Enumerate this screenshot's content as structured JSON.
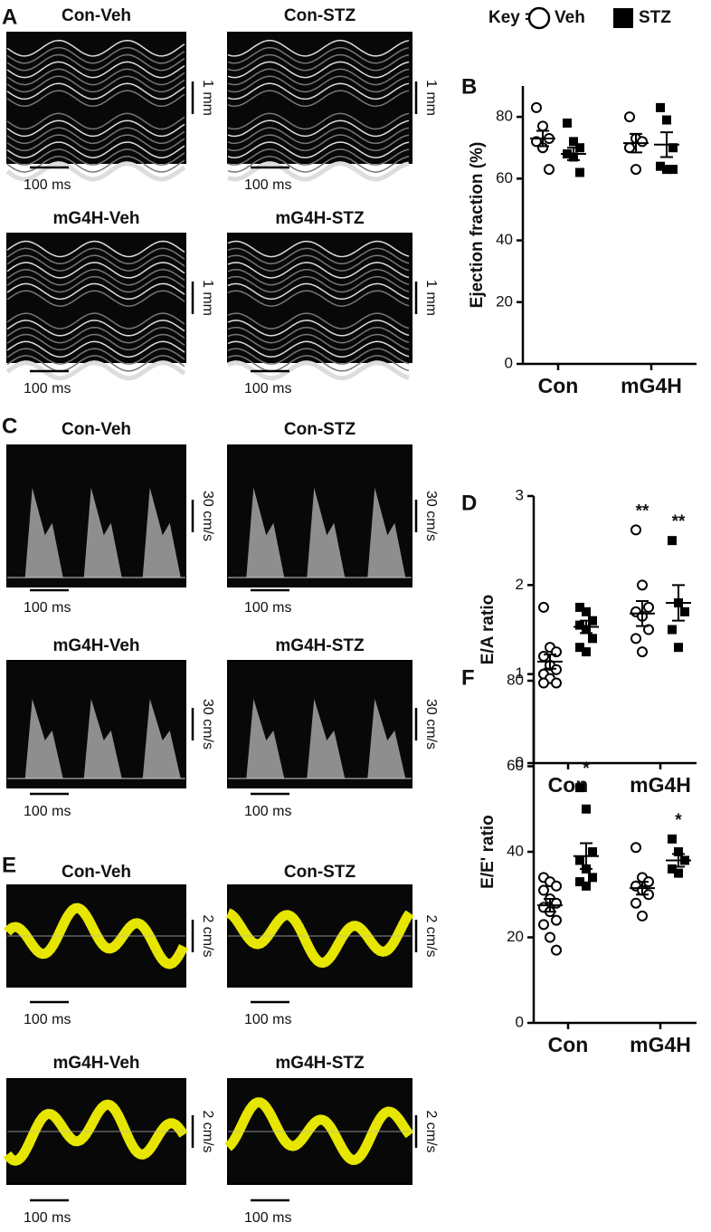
{
  "key_label": "Key =",
  "panel_labels": [
    "A",
    "B",
    "C",
    "D",
    "E",
    "F"
  ],
  "image_groups": [
    {
      "kind": "m-mode",
      "scale_y": "1 mm",
      "scale_x": "100 ms",
      "titles": [
        "Con-Veh",
        "Con-STZ",
        "mG4H-Veh",
        "mG4H-STZ"
      ]
    },
    {
      "kind": "doppler",
      "scale_y": "30 cm/s",
      "scale_x": "100 ms",
      "titles": [
        "Con-Veh",
        "Con-STZ",
        "mG4H-Veh",
        "mG4H-STZ"
      ]
    },
    {
      "kind": "tissue",
      "scale_y": "2 cm/s",
      "scale_x": "100 ms",
      "titles": [
        "Con-Veh",
        "Con-STZ",
        "mG4H-Veh",
        "mG4H-STZ"
      ]
    }
  ],
  "chart_data": [
    {
      "type": "dot",
      "y_label": "Ejection fraction (%)",
      "categories": [
        "Con",
        "mG4H"
      ],
      "ylim": [
        0,
        90
      ],
      "yticks": [
        0,
        20,
        40,
        60,
        80
      ],
      "series": [
        {
          "name": "Veh",
          "marker": "circle",
          "color": "#000000",
          "values": [
            [
              83,
              77,
              73,
              72,
              70,
              63
            ],
            [
              80,
              73,
              72,
              70,
              63
            ]
          ],
          "mean": [
            73,
            71.5
          ],
          "sem": [
            2.5,
            3
          ]
        },
        {
          "name": "STZ",
          "marker": "square",
          "color": "#000000",
          "values": [
            [
              78,
              72,
              70,
              68,
              67,
              62
            ],
            [
              83,
              79,
              70,
              64,
              63,
              63
            ]
          ],
          "mean": [
            68,
            71
          ],
          "sem": [
            2,
            4
          ]
        }
      ]
    },
    {
      "type": "dot",
      "y_label": "E/A ratio",
      "categories": [
        "Con",
        "mG4H"
      ],
      "ylim": [
        0,
        3
      ],
      "yticks": [
        0,
        1,
        2,
        3
      ],
      "series": [
        {
          "name": "Veh",
          "marker": "circle",
          "color": "#000000",
          "values": [
            [
              1.75,
              1.3,
              1.25,
              1.2,
              1.1,
              1.05,
              1.0,
              0.95,
              0.9,
              0.9
            ],
            [
              2.62,
              2.0,
              1.75,
              1.7,
              1.65,
              1.5,
              1.4,
              1.25
            ]
          ],
          "mean": [
            1.14,
            1.68
          ],
          "sem": [
            0.08,
            0.14
          ],
          "annotations": [
            null,
            "**"
          ]
        },
        {
          "name": "STZ",
          "marker": "square",
          "color": "#000000",
          "values": [
            [
              1.75,
              1.7,
              1.6,
              1.55,
              1.5,
              1.4,
              1.3,
              1.25
            ],
            [
              2.5,
              1.8,
              1.7,
              1.5,
              1.3
            ]
          ],
          "mean": [
            1.53,
            1.8
          ],
          "sem": [
            0.07,
            0.2
          ],
          "annotations": [
            null,
            "**"
          ]
        }
      ]
    },
    {
      "type": "dot",
      "y_label": "E/E' ratio",
      "categories": [
        "Con",
        "mG4H"
      ],
      "ylim": [
        0,
        80
      ],
      "yticks": [
        0,
        20,
        40,
        60,
        80
      ],
      "series": [
        {
          "name": "Veh",
          "marker": "circle",
          "color": "#000000",
          "values": [
            [
              34,
              33,
              32,
              31,
              29,
              28,
              27,
              26,
              24,
              23,
              20,
              17
            ],
            [
              41,
              34,
              33,
              32,
              31,
              30,
              28,
              25
            ]
          ],
          "mean": [
            27.5,
            31.5
          ],
          "sem": [
            1.5,
            1.5
          ]
        },
        {
          "name": "STZ",
          "marker": "square",
          "color": "#000000",
          "values": [
            [
              55,
              50,
              40,
              38,
              36,
              34,
              33,
              32
            ],
            [
              43,
              40,
              38,
              36,
              35
            ]
          ],
          "mean": [
            39,
            38
          ],
          "sem": [
            3,
            1.5
          ],
          "annotations": [
            "*",
            "*"
          ]
        }
      ]
    }
  ]
}
